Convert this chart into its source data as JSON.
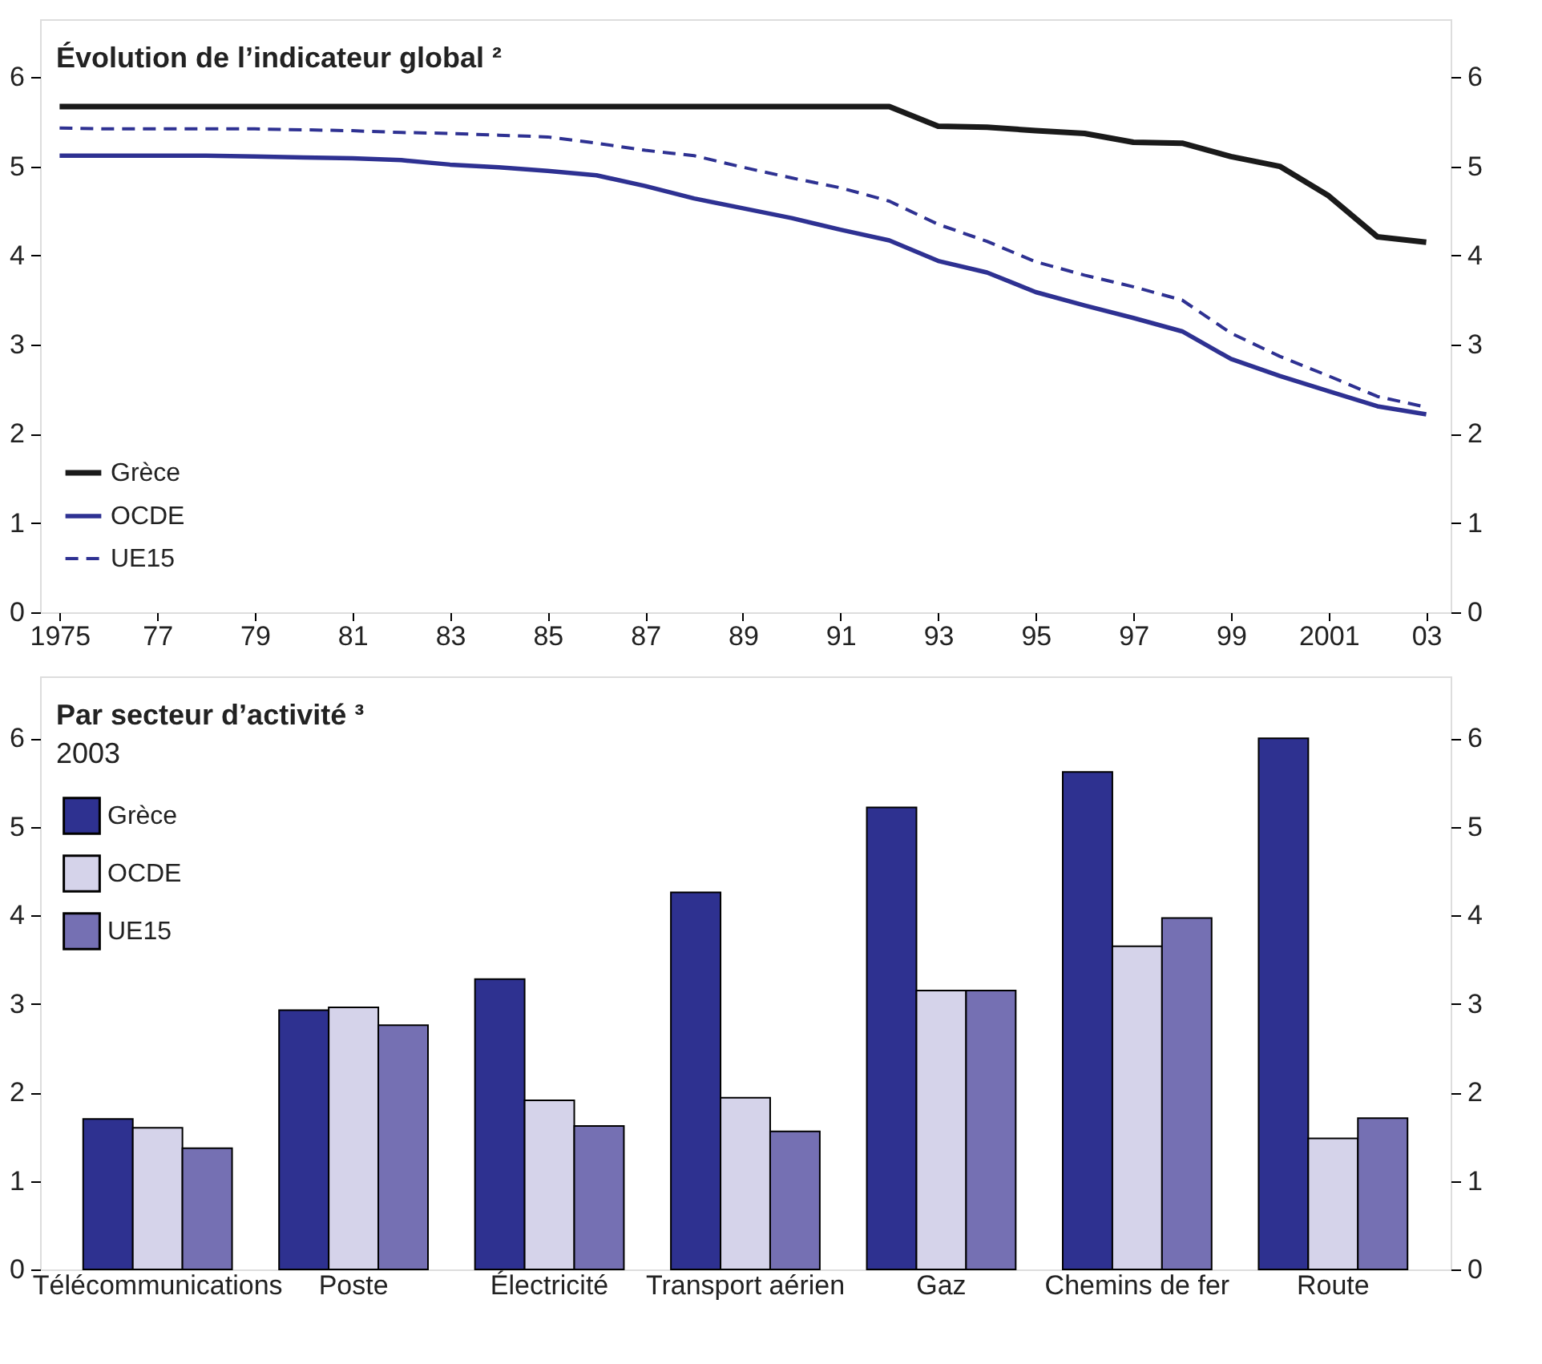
{
  "chart_data": [
    {
      "type": "line",
      "title": "Évolution de l’indicateur global ²",
      "x": [
        1975,
        1976,
        1977,
        1978,
        1979,
        1980,
        1981,
        1982,
        1983,
        1984,
        1985,
        1986,
        1987,
        1988,
        1989,
        1990,
        1991,
        1992,
        1993,
        1994,
        1995,
        1996,
        1997,
        1998,
        1999,
        2000,
        2001,
        2002,
        2003
      ],
      "series": [
        {
          "name": "Grèce",
          "color": "#1a1a1a",
          "line_style": "solid",
          "values": [
            5.67,
            5.67,
            5.67,
            5.67,
            5.67,
            5.67,
            5.67,
            5.67,
            5.67,
            5.67,
            5.67,
            5.67,
            5.67,
            5.67,
            5.67,
            5.67,
            5.67,
            5.67,
            5.45,
            5.44,
            5.4,
            5.37,
            5.27,
            5.26,
            5.11,
            5.0,
            4.67,
            4.21,
            4.15
          ]
        },
        {
          "name": "OCDE",
          "color": "#2e3192",
          "line_style": "solid",
          "values": [
            5.12,
            5.12,
            5.12,
            5.12,
            5.11,
            5.1,
            5.09,
            5.07,
            5.02,
            4.99,
            4.95,
            4.9,
            4.78,
            4.64,
            4.53,
            4.42,
            4.29,
            4.17,
            3.94,
            3.81,
            3.59,
            3.44,
            3.3,
            3.15,
            2.84,
            2.65,
            2.48,
            2.31,
            2.22
          ]
        },
        {
          "name": "UE15",
          "color": "#2e3192",
          "line_style": "dashed",
          "values": [
            5.43,
            5.42,
            5.42,
            5.42,
            5.42,
            5.41,
            5.4,
            5.38,
            5.37,
            5.35,
            5.33,
            5.26,
            5.18,
            5.12,
            4.99,
            4.87,
            4.76,
            4.61,
            4.35,
            4.16,
            3.93,
            3.78,
            3.65,
            3.5,
            3.13,
            2.87,
            2.65,
            2.42,
            2.3
          ]
        }
      ],
      "xlim": [
        1974.6,
        2003.5
      ],
      "xticks": [
        1975,
        {
          "value": 1977,
          "label": "77"
        },
        {
          "value": 1979,
          "label": "79"
        },
        {
          "value": 1981,
          "label": "81"
        },
        {
          "value": 1983,
          "label": "83"
        },
        {
          "value": 1985,
          "label": "85"
        },
        {
          "value": 1987,
          "label": "87"
        },
        {
          "value": 1989,
          "label": "89"
        },
        {
          "value": 1991,
          "label": "91"
        },
        {
          "value": 1993,
          "label": "93"
        },
        {
          "value": 1995,
          "label": "95"
        },
        {
          "value": 1997,
          "label": "97"
        },
        {
          "value": 1999,
          "label": "99"
        },
        2001,
        {
          "value": 2003,
          "label": "03"
        }
      ],
      "ylim": [
        0,
        6.65
      ],
      "yticks": [
        0,
        1,
        2,
        3,
        4,
        5,
        6
      ],
      "y2lim": [
        0,
        6.65
      ],
      "y2ticks": [
        0,
        1,
        2,
        3,
        4,
        5,
        6
      ],
      "legend": "bottom left",
      "grid": false,
      "marker": "none"
    },
    {
      "type": "bar",
      "title": "Par secteur d’activité ³",
      "subtitle": "2003",
      "categories": [
        "Télécommunications",
        "Poste",
        "Électricité",
        "Transport aérien",
        "Gaz",
        "Chemins de fer",
        "Route"
      ],
      "series": [
        {
          "name": "Grèce",
          "color": "#2e3190",
          "values": [
            1.7,
            2.93,
            3.28,
            4.26,
            5.22,
            5.62,
            6.0
          ]
        },
        {
          "name": "OCDE",
          "color": "#d5d3ea",
          "values": [
            1.6,
            2.96,
            1.91,
            1.94,
            3.15,
            3.65,
            1.48
          ]
        },
        {
          "name": "UE15",
          "color": "#7570b3",
          "values": [
            1.37,
            2.76,
            1.62,
            1.56,
            3.15,
            3.97,
            1.71
          ]
        }
      ],
      "ylim": [
        0,
        6.7
      ],
      "yticks": [
        0,
        1,
        2,
        3,
        4,
        5,
        6
      ],
      "y2lim": [
        0,
        6.7
      ],
      "y2ticks": [
        0,
        1,
        2,
        3,
        4,
        5,
        6
      ],
      "legend": "top left",
      "grid": false
    }
  ]
}
